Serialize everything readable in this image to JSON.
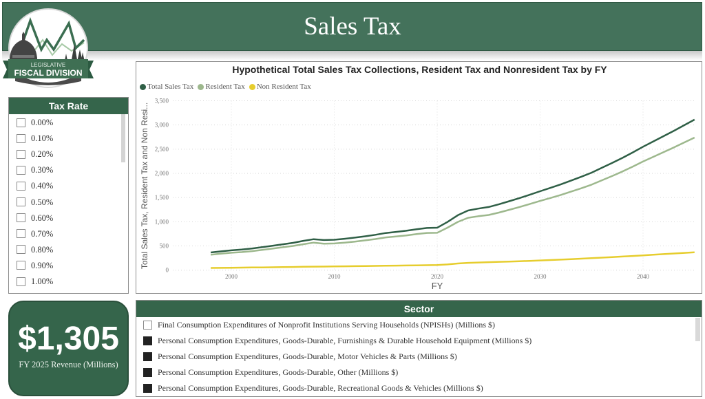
{
  "header": {
    "title": "Sales Tax",
    "logo": {
      "line1": "LEGISLATIVE",
      "line2": "FISCAL DIVISION"
    }
  },
  "colors": {
    "brand_green": "#35654b",
    "header_green": "#44725b",
    "total_series": "#2f5f46",
    "resident_series": "#9db88d",
    "nonresident_series": "#e6cd2e"
  },
  "tax_rate_slicer": {
    "title": "Tax Rate",
    "options": [
      {
        "label": "0.00%",
        "checked": false
      },
      {
        "label": "0.10%",
        "checked": false
      },
      {
        "label": "0.20%",
        "checked": false
      },
      {
        "label": "0.30%",
        "checked": false
      },
      {
        "label": "0.40%",
        "checked": false
      },
      {
        "label": "0.50%",
        "checked": false
      },
      {
        "label": "0.60%",
        "checked": false
      },
      {
        "label": "0.70%",
        "checked": false
      },
      {
        "label": "0.80%",
        "checked": false
      },
      {
        "label": "0.90%",
        "checked": false
      },
      {
        "label": "1.00%",
        "checked": false
      }
    ]
  },
  "kpi": {
    "value": "$1,305",
    "label": "FY 2025 Revenue (Millions)"
  },
  "sector_slicer": {
    "title": "Sector",
    "options": [
      {
        "label": "Final Consumption Expenditures of Nonprofit Institutions Serving Households (NPISHs) (Millions $)",
        "checked": false
      },
      {
        "label": "Personal Consumption Expenditures, Goods-Durable, Furnishings & Durable Household Equipment (Millions $)",
        "checked": true
      },
      {
        "label": "Personal Consumption Expenditures, Goods-Durable, Motor Vehicles & Parts (Millions $)",
        "checked": true
      },
      {
        "label": "Personal Consumption Expenditures, Goods-Durable, Other (Millions $)",
        "checked": true
      },
      {
        "label": "Personal Consumption Expenditures, Goods-Durable, Recreational Goods & Vehicles (Millions $)",
        "checked": true
      }
    ]
  },
  "chart_data": {
    "type": "line",
    "title": "Hypothetical Total Sales Tax Collections, Resident Tax and Nonresident Tax by FY",
    "xlabel": "FY",
    "ylabel": "Total Sales Tax, Resident Tax and Non Resi...",
    "legend_position": "top-left",
    "grid": true,
    "ylim": [
      0,
      3500
    ],
    "yticks": [
      0,
      500,
      1000,
      1500,
      2000,
      2500,
      3000,
      3500
    ],
    "ytick_labels": [
      "0",
      "500",
      "1,000",
      "1,500",
      "2,000",
      "2,500",
      "3,000",
      "3,500"
    ],
    "xticks": [
      2000,
      2010,
      2020,
      2030,
      2040
    ],
    "xtick_labels": [
      "2000",
      "2010",
      "2020",
      "2030",
      "2040"
    ],
    "x": [
      1998,
      1999,
      2000,
      2001,
      2002,
      2003,
      2004,
      2005,
      2006,
      2007,
      2008,
      2009,
      2010,
      2011,
      2012,
      2013,
      2014,
      2015,
      2016,
      2017,
      2018,
      2019,
      2020,
      2021,
      2022,
      2023,
      2024,
      2025,
      2026,
      2027,
      2028,
      2029,
      2030,
      2031,
      2032,
      2033,
      2034,
      2035,
      2036,
      2037,
      2038,
      2039,
      2040,
      2041,
      2042,
      2043,
      2044,
      2045
    ],
    "series": [
      {
        "name": "Total Sales Tax",
        "color": "#2f5f46",
        "values": [
          365,
          388,
          410,
          425,
          448,
          475,
          505,
          535,
          565,
          605,
          640,
          622,
          628,
          648,
          672,
          700,
          730,
          768,
          790,
          815,
          845,
          872,
          877,
          995,
          1135,
          1232,
          1272,
          1305,
          1362,
          1425,
          1490,
          1558,
          1630,
          1700,
          1772,
          1850,
          1930,
          2015,
          2115,
          2215,
          2320,
          2432,
          2550,
          2660,
          2770,
          2880,
          2995,
          3110
        ]
      },
      {
        "name": "Resident Tax",
        "color": "#9db88d",
        "values": [
          320,
          341,
          360,
          373,
          393,
          418,
          445,
          473,
          500,
          536,
          568,
          548,
          551,
          569,
          590,
          615,
          642,
          677,
          696,
          718,
          745,
          769,
          772,
          877,
          997,
          1082,
          1114,
          1140,
          1190,
          1247,
          1305,
          1366,
          1430,
          1491,
          1554,
          1622,
          1692,
          1767,
          1856,
          1945,
          2039,
          2139,
          2245,
          2342,
          2439,
          2536,
          2638,
          2740
        ]
      },
      {
        "name": "Non Resident Tax",
        "color": "#e6cd2e",
        "values": [
          45,
          47,
          50,
          52,
          55,
          57,
          60,
          62,
          65,
          69,
          72,
          74,
          77,
          79,
          82,
          85,
          88,
          91,
          94,
          97,
          100,
          103,
          105,
          118,
          138,
          150,
          158,
          165,
          172,
          178,
          185,
          192,
          200,
          209,
          218,
          228,
          238,
          248,
          259,
          270,
          281,
          293,
          305,
          318,
          331,
          344,
          357,
          370
        ]
      }
    ]
  }
}
